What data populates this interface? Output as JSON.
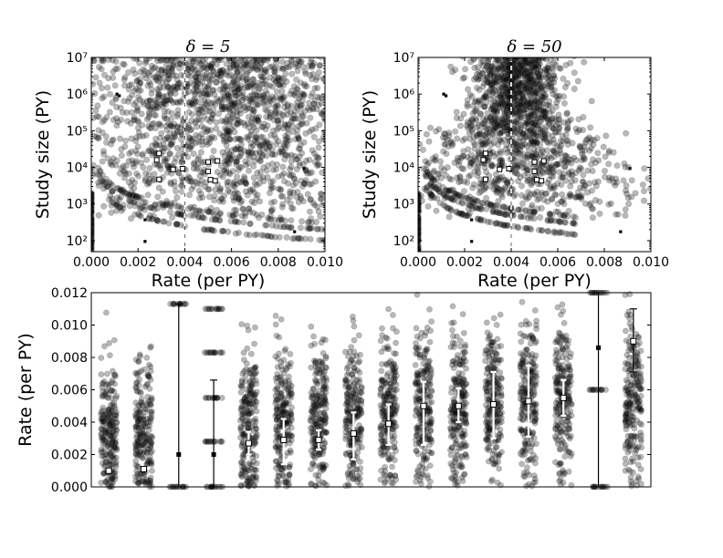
{
  "chart_data": [
    {
      "type": "scatter",
      "title": "δ = 5",
      "xlabel": "Rate (per PY)",
      "ylabel": "Study size (PY)",
      "xlim": [
        0.0,
        0.01
      ],
      "ylim": [
        50,
        10000000
      ],
      "yscale": "log",
      "x_ticks": [
        "0.000",
        "0.002",
        "0.004",
        "0.006",
        "0.008",
        "0.010"
      ],
      "y_ticks": [
        "10²",
        "10³",
        "10⁴",
        "10⁵",
        "10⁶",
        "10⁷"
      ],
      "reference_line_x": 0.004,
      "highlighted_studies": [
        {
          "x": 0.0028,
          "y": 16000
        },
        {
          "x": 0.0029,
          "y": 24000
        },
        {
          "x": 0.0029,
          "y": 4700
        },
        {
          "x": 0.0035,
          "y": 8800
        },
        {
          "x": 0.0039,
          "y": 9200
        },
        {
          "x": 0.005,
          "y": 14000
        },
        {
          "x": 0.005,
          "y": 7800
        },
        {
          "x": 0.0051,
          "y": 4600
        },
        {
          "x": 0.0053,
          "y": 4300
        },
        {
          "x": 0.0054,
          "y": 15000
        }
      ],
      "outlier_studies": [
        {
          "x": 0.0011,
          "y": 1000000
        },
        {
          "x": 0.0012,
          "y": 900000
        },
        {
          "x": 0.0023,
          "y": 370
        },
        {
          "x": 0.0023,
          "y": 95
        },
        {
          "x": 0.0087,
          "y": 175
        },
        {
          "x": 0.0091,
          "y": 9300
        }
      ]
    },
    {
      "type": "scatter",
      "title": "δ = 50",
      "xlabel": "Rate (per PY)",
      "ylabel": "Study size (PY)",
      "xlim": [
        0.0,
        0.01
      ],
      "ylim": [
        50,
        10000000
      ],
      "yscale": "log",
      "x_ticks": [
        "0.000",
        "0.002",
        "0.004",
        "0.006",
        "0.008",
        "0.010"
      ],
      "y_ticks": [
        "10²",
        "10³",
        "10⁴",
        "10⁵",
        "10⁶",
        "10⁷"
      ],
      "reference_line_x": 0.004,
      "highlighted_studies": [
        {
          "x": 0.0028,
          "y": 16000
        },
        {
          "x": 0.0029,
          "y": 24000
        },
        {
          "x": 0.0029,
          "y": 4700
        },
        {
          "x": 0.0035,
          "y": 8800
        },
        {
          "x": 0.0039,
          "y": 9200
        },
        {
          "x": 0.005,
          "y": 14000
        },
        {
          "x": 0.005,
          "y": 7800
        },
        {
          "x": 0.0051,
          "y": 4600
        },
        {
          "x": 0.0053,
          "y": 4300
        },
        {
          "x": 0.0054,
          "y": 15000
        }
      ],
      "outlier_studies": [
        {
          "x": 0.0011,
          "y": 1000000
        },
        {
          "x": 0.0012,
          "y": 900000
        },
        {
          "x": 0.0023,
          "y": 370
        },
        {
          "x": 0.0023,
          "y": 95
        },
        {
          "x": 0.0087,
          "y": 175
        },
        {
          "x": 0.0091,
          "y": 9300
        }
      ]
    },
    {
      "type": "scatter",
      "title": "",
      "xlabel": "",
      "ylabel": "Rate (per PY)",
      "ylim": [
        0.0,
        0.012
      ],
      "y_ticks": [
        "0.000",
        "0.002",
        "0.004",
        "0.006",
        "0.008",
        "0.010",
        "0.012"
      ],
      "grid": false,
      "groups": [
        {
          "kind": "continuous",
          "center": 0.0033,
          "spread": 0.0022,
          "estimate": 0.001,
          "lo": 0.001,
          "hi": 0.001
        },
        {
          "kind": "continuous",
          "center": 0.0036,
          "spread": 0.0023,
          "estimate": 0.0011,
          "lo": 0.0011,
          "hi": 0.0011
        },
        {
          "kind": "discrete",
          "levels": [
            0.0,
            0.0113
          ],
          "estimate": 0.002,
          "lo": 0.0,
          "hi": 0.0113
        },
        {
          "kind": "discrete",
          "levels": [
            0.0,
            0.0028,
            0.0055,
            0.0083,
            0.011
          ],
          "estimate": 0.002,
          "lo": 0.0,
          "hi": 0.0066
        },
        {
          "kind": "continuous",
          "center": 0.004,
          "spread": 0.0024,
          "estimate": 0.0027,
          "lo": 0.002,
          "hi": 0.0034
        },
        {
          "kind": "continuous",
          "center": 0.0042,
          "spread": 0.0024,
          "estimate": 0.0029,
          "lo": 0.0014,
          "hi": 0.0042
        },
        {
          "kind": "continuous",
          "center": 0.0043,
          "spread": 0.0024,
          "estimate": 0.0029,
          "lo": 0.0023,
          "hi": 0.0035
        },
        {
          "kind": "continuous",
          "center": 0.0045,
          "spread": 0.0024,
          "estimate": 0.0033,
          "lo": 0.0017,
          "hi": 0.0046
        },
        {
          "kind": "continuous",
          "center": 0.0047,
          "spread": 0.0024,
          "estimate": 0.0039,
          "lo": 0.0026,
          "hi": 0.0051
        },
        {
          "kind": "continuous",
          "center": 0.005,
          "spread": 0.0025,
          "estimate": 0.005,
          "lo": 0.0026,
          "hi": 0.0065
        },
        {
          "kind": "continuous",
          "center": 0.0051,
          "spread": 0.0025,
          "estimate": 0.005,
          "lo": 0.004,
          "hi": 0.0061
        },
        {
          "kind": "continuous",
          "center": 0.0052,
          "spread": 0.0025,
          "estimate": 0.0051,
          "lo": 0.003,
          "hi": 0.0071
        },
        {
          "kind": "continuous",
          "center": 0.0054,
          "spread": 0.0025,
          "estimate": 0.0053,
          "lo": 0.0031,
          "hi": 0.0075
        },
        {
          "kind": "continuous",
          "center": 0.0055,
          "spread": 0.0025,
          "estimate": 0.0055,
          "lo": 0.0044,
          "hi": 0.0066
        },
        {
          "kind": "discrete",
          "levels": [
            0.0,
            0.006,
            0.012
          ],
          "estimate": 0.0086,
          "lo": 0.0,
          "hi": 0.012
        },
        {
          "kind": "continuous",
          "center": 0.0052,
          "spread": 0.0026,
          "estimate": 0.009,
          "lo": 0.0071,
          "hi": 0.011
        }
      ]
    }
  ]
}
